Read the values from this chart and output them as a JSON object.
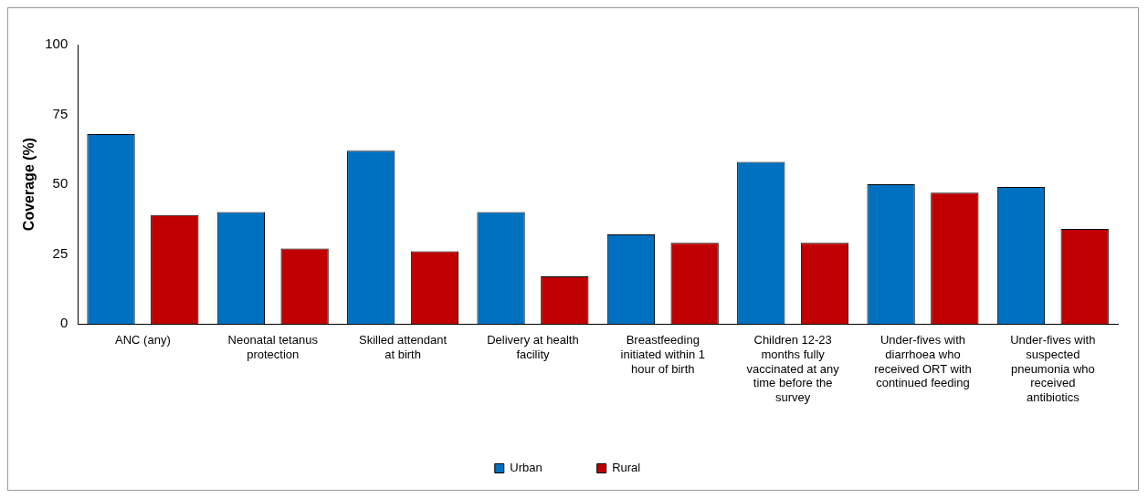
{
  "chart_data": {
    "type": "bar",
    "ylabel": "Coverage (%)",
    "categories": [
      "ANC (any)",
      "Neonatal tetanus protection",
      "Skilled attendant at birth",
      "Delivery at health facility",
      "Breastfeeding initiated within 1 hour of birth",
      "Children 12-23 months fully vaccinated at any time before the survey",
      "Under-fives with diarrhoea who received ORT with continued feeding",
      "Under-fives with suspected pneumonia who received antibiotics"
    ],
    "series": [
      {
        "name": "Urban",
        "color": "#0070c0",
        "values": [
          68,
          40,
          62,
          40,
          32,
          58,
          50,
          49
        ]
      },
      {
        "name": "Rural",
        "color": "#c00000",
        "values": [
          39,
          27,
          26,
          17,
          29,
          29,
          47,
          34
        ]
      }
    ],
    "ylim": [
      0,
      100
    ],
    "yticks": [
      0,
      25,
      50,
      75,
      100
    ],
    "grid": false,
    "legend": "bottom"
  }
}
